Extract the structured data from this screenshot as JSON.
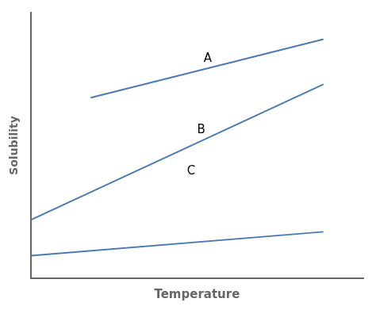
{
  "chart_data": {
    "type": "line",
    "x_label": "Temperature",
    "y_label": "Solubility",
    "series": [
      {
        "color": "#4a7ab5",
        "x": [
          0.18,
          0.88
        ],
        "values": [
          0.68,
          0.9
        ]
      },
      {
        "color": "#4a7ab5",
        "x": [
          0.0,
          0.88
        ],
        "values": [
          0.22,
          0.73
        ]
      },
      {
        "color": "#4a7ab5",
        "x": [
          0.0,
          0.88
        ],
        "values": [
          0.085,
          0.175
        ]
      }
    ],
    "annotations": [
      {
        "text": "A",
        "x": 0.52,
        "y": 0.805
      },
      {
        "text": "B",
        "x": 0.5,
        "y": 0.535
      },
      {
        "text": "C",
        "x": 0.47,
        "y": 0.38
      }
    ],
    "xlim": [
      0,
      1
    ],
    "ylim": [
      0,
      1
    ],
    "tick_labels": false,
    "grid": false
  }
}
